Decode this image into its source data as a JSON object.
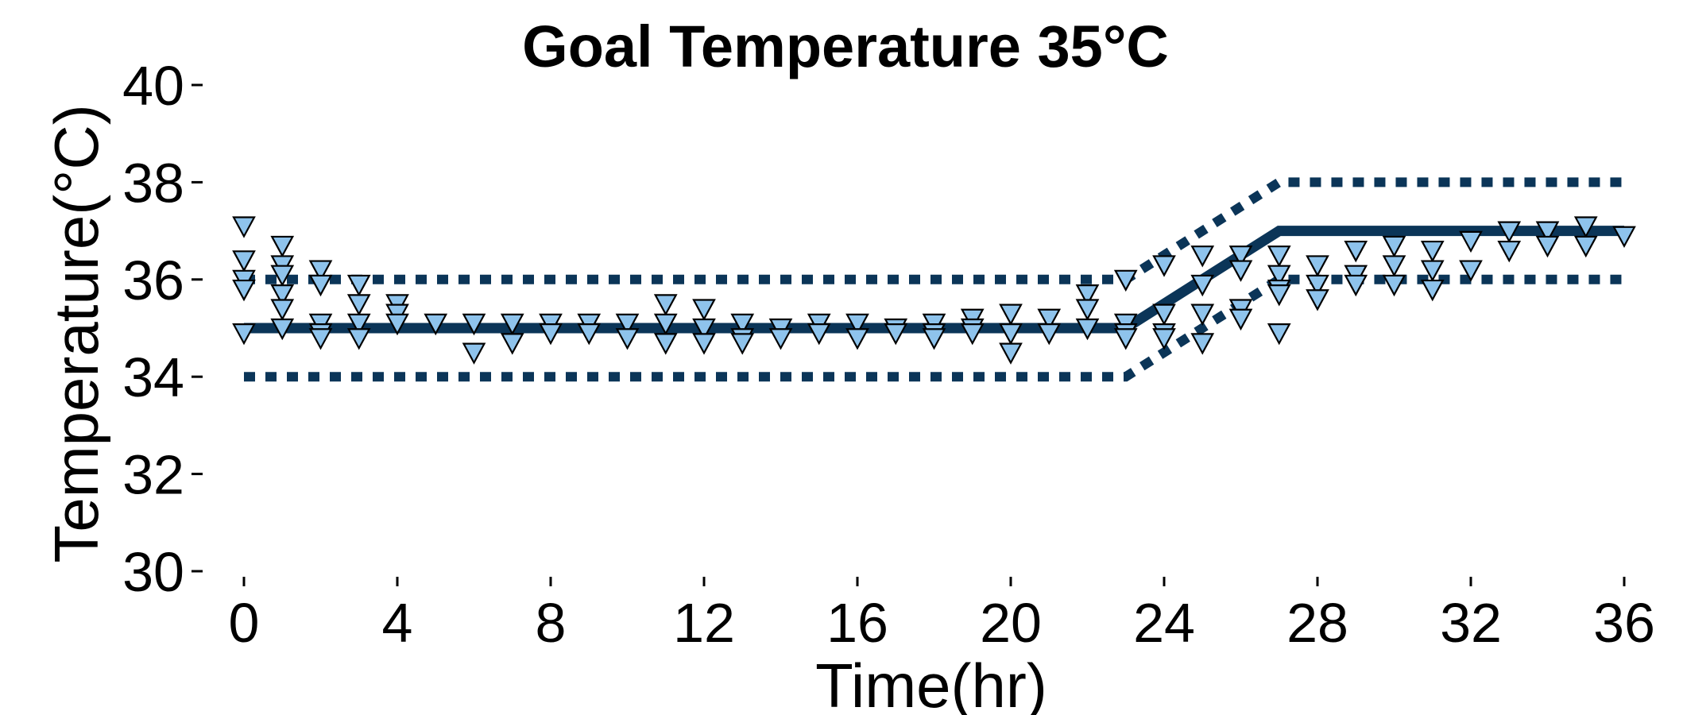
{
  "chart_data": {
    "type": "scatter",
    "title": "Goal Temperature 35°C",
    "xlabel": "Time(hr)",
    "ylabel": "Temperature(°C)",
    "xlim": [
      -1,
      37
    ],
    "ylim": [
      30,
      40
    ],
    "x_ticks": [
      0,
      4,
      8,
      12,
      16,
      20,
      24,
      28,
      32,
      36
    ],
    "y_ticks": [
      30,
      32,
      34,
      36,
      38,
      40
    ],
    "grid": false,
    "colors": {
      "line": "#0b3558",
      "marker_fill": "#8ec3ec",
      "marker_edge": "#000000"
    },
    "series": [
      {
        "kind": "line",
        "style": "solid",
        "x": [
          0,
          23,
          27,
          36
        ],
        "y": [
          35,
          35,
          37,
          37
        ]
      },
      {
        "kind": "line",
        "style": "dotted",
        "x": [
          0,
          23,
          27,
          36
        ],
        "y": [
          36,
          36,
          38,
          38
        ]
      },
      {
        "kind": "line",
        "style": "dotted",
        "x": [
          0,
          23,
          27,
          36
        ],
        "y": [
          34,
          34,
          36,
          36
        ]
      },
      {
        "kind": "points",
        "marker": "triangle-down",
        "x": [
          0,
          0,
          0,
          0,
          0,
          1,
          1,
          1,
          1,
          1,
          1,
          2,
          2,
          2,
          2,
          2,
          3,
          3,
          3,
          3,
          4,
          4,
          4,
          5,
          6,
          6,
          7,
          7,
          8,
          8,
          9,
          9,
          10,
          10,
          11,
          11,
          11,
          12,
          12,
          12,
          13,
          13,
          13,
          14,
          14,
          15,
          15,
          16,
          16,
          17,
          17,
          18,
          18,
          18,
          19,
          19,
          19,
          20,
          20,
          20,
          21,
          21,
          22,
          22,
          22,
          23,
          23,
          23,
          23,
          24,
          24,
          24,
          24,
          25,
          25,
          25,
          25,
          26,
          26,
          26,
          26,
          27,
          27,
          27,
          27,
          27,
          28,
          28,
          28,
          29,
          29,
          29,
          30,
          30,
          30,
          31,
          31,
          31,
          32,
          32,
          33,
          33,
          34,
          34,
          35,
          35,
          36
        ],
        "y": [
          37.1,
          36.4,
          36,
          35.8,
          34.9,
          36.7,
          36.3,
          36.1,
          35.7,
          35.4,
          35,
          36.2,
          35.9,
          35.1,
          34.9,
          34.8,
          35.9,
          35.5,
          35.1,
          34.8,
          35.5,
          35.3,
          35.1,
          35.1,
          35.1,
          34.5,
          35.1,
          34.7,
          35.1,
          34.9,
          35.1,
          34.9,
          35.1,
          34.8,
          35.5,
          35.1,
          34.7,
          35.4,
          35,
          34.7,
          35.1,
          34.8,
          34.7,
          35,
          34.8,
          35.1,
          34.9,
          35.1,
          34.8,
          35,
          34.9,
          35.1,
          34.9,
          34.8,
          35.2,
          35,
          34.9,
          35.3,
          34.9,
          34.5,
          35.2,
          34.9,
          35.7,
          35.4,
          35,
          36,
          35.1,
          34.9,
          34.8,
          36.3,
          35.3,
          34.9,
          34.8,
          36.5,
          35.9,
          35.3,
          34.7,
          36.5,
          36.2,
          35.4,
          35.2,
          36.5,
          36.1,
          35.8,
          35.7,
          34.9,
          36.3,
          35.9,
          35.6,
          36.6,
          36.1,
          35.9,
          36.7,
          36.3,
          35.9,
          36.6,
          36.2,
          35.8,
          36.8,
          36.2,
          37,
          36.6,
          37,
          36.7,
          37.1,
          36.7,
          36.9
        ]
      }
    ]
  }
}
